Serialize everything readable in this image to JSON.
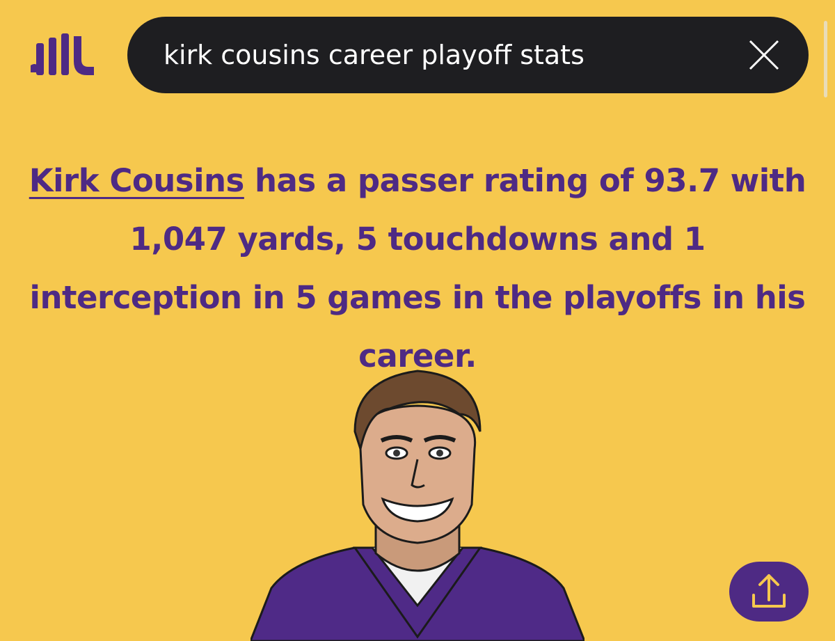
{
  "search": {
    "query": "kirk cousins career playoff stats"
  },
  "answer": {
    "player_link": "Kirk Cousins",
    "text": " has a passer rating of 93.7 with 1,047 yards, 5 touchdowns and 1 interception in 5 games in the playoffs in his career."
  }
}
